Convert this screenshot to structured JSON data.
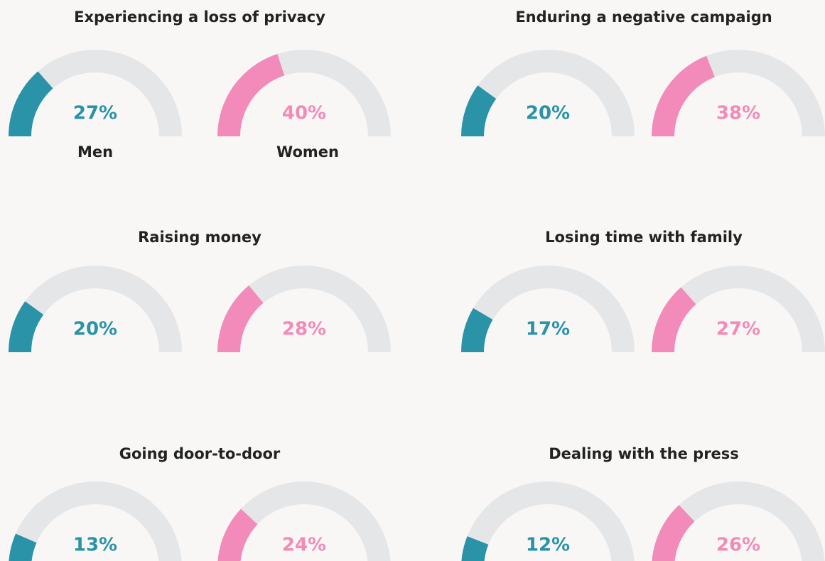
{
  "chart_data": {
    "type": "gauge",
    "ylim": [
      0,
      100
    ],
    "series": [
      {
        "name": "Men",
        "color": "#2a93a8"
      },
      {
        "name": "Women",
        "color": "#f28bb9"
      }
    ],
    "panels": [
      {
        "title": "Experiencing a loss of privacy",
        "values": [
          27,
          40
        ],
        "value_labels": [
          "27%",
          "40%"
        ]
      },
      {
        "title": "Enduring a negative campaign",
        "values": [
          20,
          38
        ],
        "value_labels": [
          "20%",
          "38%"
        ]
      },
      {
        "title": "Raising money",
        "values": [
          20,
          28
        ],
        "value_labels": [
          "20%",
          "28%"
        ]
      },
      {
        "title": "Losing time with family",
        "values": [
          17,
          27
        ],
        "value_labels": [
          "17%",
          "27%"
        ]
      },
      {
        "title": "Going door-to-door",
        "values": [
          13,
          24
        ],
        "value_labels": [
          "13%",
          "24%"
        ]
      },
      {
        "title": "Dealing with the press",
        "values": [
          12,
          26
        ],
        "value_labels": [
          "12%",
          "26%"
        ]
      }
    ]
  }
}
